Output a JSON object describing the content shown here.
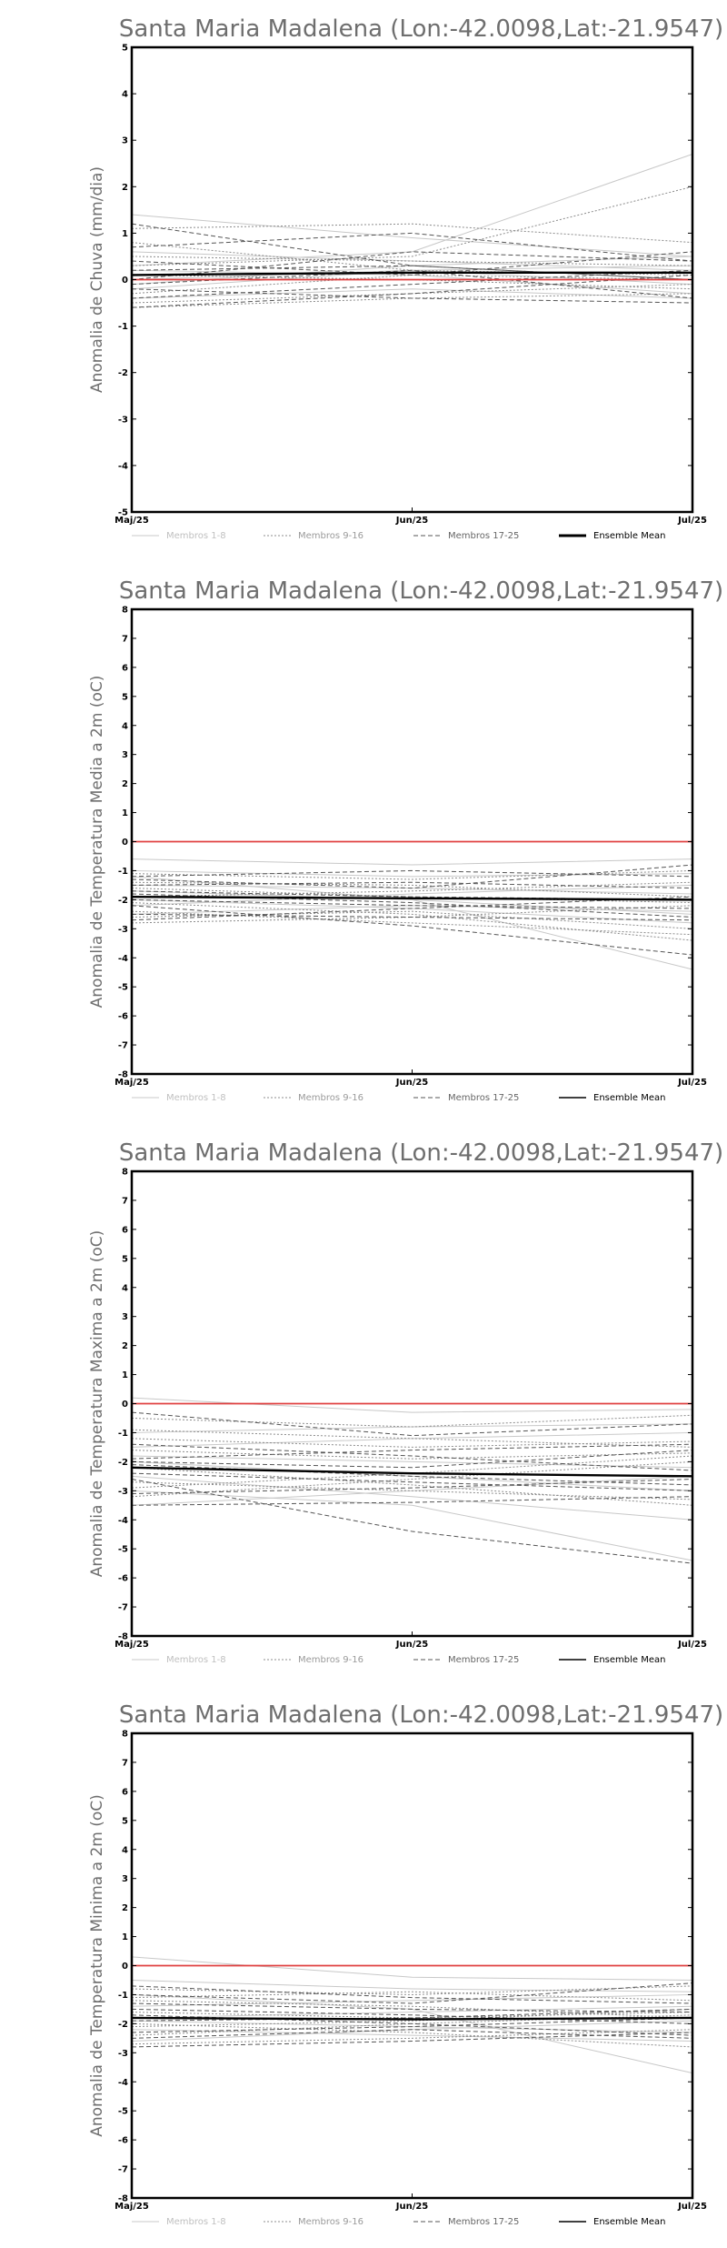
{
  "chart_data": [
    {
      "type": "line",
      "title": "Santa Maria Madalena (Lon:-42.0098,Lat:-21.9547)",
      "xlabel": "",
      "ylabel": "Anomalia de Chuva (mm/dia)",
      "categories": [
        "Maj/25",
        "Jun/25",
        "Jul/25"
      ],
      "yticks": [
        "5",
        "4",
        "3",
        "2",
        "1",
        "0",
        "-1",
        "-2",
        "-3",
        "-4",
        "-5"
      ],
      "ylim": [
        -5,
        5
      ],
      "grid": false,
      "legend_position": "bottom",
      "legend": [
        {
          "label": "Membros 1-8",
          "color": "#c8c8c8",
          "dash": "solid"
        },
        {
          "label": "Membros 9-16",
          "color": "#8c8c8c",
          "dash": "dotted"
        },
        {
          "label": "Membros 17-25",
          "color": "#555555",
          "dash": "dashed"
        },
        {
          "label": "Ensemble Mean",
          "color": "#000000",
          "dash": "solid"
        }
      ],
      "zero_line_color": "#e04040",
      "ensemble_mean": [
        0.1,
        0.15,
        0.15
      ],
      "members": [
        [
          1.4,
          0.9,
          0.5
        ],
        [
          0.3,
          0.6,
          2.7
        ],
        [
          -0.2,
          0.2,
          0.3
        ],
        [
          0.2,
          0.1,
          -0.3
        ],
        [
          -0.4,
          -0.2,
          -0.4
        ],
        [
          0.6,
          0.4,
          0.2
        ],
        [
          -0.1,
          0.3,
          0.5
        ],
        [
          0.0,
          0.2,
          -0.1
        ],
        [
          1.1,
          1.2,
          0.8
        ],
        [
          0.5,
          0.4,
          0.3
        ],
        [
          -0.5,
          -0.3,
          -0.1
        ],
        [
          0.1,
          0.0,
          -0.2
        ],
        [
          -0.3,
          0.1,
          0.0
        ],
        [
          0.8,
          0.2,
          0.1
        ],
        [
          -0.6,
          -0.4,
          -0.3
        ],
        [
          0.3,
          0.5,
          2.0
        ],
        [
          1.2,
          0.3,
          0.0
        ],
        [
          -0.4,
          -0.1,
          0.2
        ],
        [
          0.0,
          0.6,
          0.4
        ],
        [
          -0.2,
          -0.4,
          -0.5
        ],
        [
          0.4,
          0.1,
          0.6
        ],
        [
          -0.6,
          -0.3,
          0.1
        ],
        [
          0.2,
          0.3,
          0.0
        ],
        [
          -0.1,
          0.2,
          -0.4
        ],
        [
          0.7,
          1.0,
          0.4
        ]
      ]
    },
    {
      "type": "line",
      "title": "Santa Maria Madalena (Lon:-42.0098,Lat:-21.9547)",
      "xlabel": "",
      "ylabel": "Anomalia de Temperatura Media a 2m (oC)",
      "categories": [
        "Maj/25",
        "Jun/25",
        "Jul/25"
      ],
      "yticks": [
        "8",
        "7",
        "6",
        "5",
        "4",
        "3",
        "2",
        "1",
        "0",
        "-1",
        "-2",
        "-3",
        "-4",
        "-5",
        "-6",
        "-7",
        "-8"
      ],
      "ylim": [
        -8,
        8
      ],
      "grid": false,
      "legend_position": "bottom",
      "legend": [
        {
          "label": "Membros 1-8",
          "color": "#c8c8c8",
          "dash": "solid"
        },
        {
          "label": "Membros 9-16",
          "color": "#8c8c8c",
          "dash": "dotted"
        },
        {
          "label": "Membros 17-25",
          "color": "#555555",
          "dash": "dashed"
        },
        {
          "label": "Ensemble Mean",
          "color": "#000000",
          "dash": "solid"
        }
      ],
      "zero_line_color": "#e04040",
      "ensemble_mean": [
        -1.9,
        -1.95,
        -2.0
      ],
      "members": [
        [
          -0.6,
          -0.8,
          -0.6
        ],
        [
          -1.2,
          -2.0,
          -4.4
        ],
        [
          -1.5,
          -1.6,
          -1.8
        ],
        [
          -2.0,
          -2.3,
          -2.8
        ],
        [
          -2.5,
          -2.2,
          -2.4
        ],
        [
          -1.0,
          -1.2,
          -1.1
        ],
        [
          -2.2,
          -1.8,
          -1.5
        ],
        [
          -1.7,
          -2.0,
          -2.5
        ],
        [
          -1.1,
          -1.3,
          -1.0
        ],
        [
          -2.6,
          -2.4,
          -3.0
        ],
        [
          -1.4,
          -1.5,
          -1.9
        ],
        [
          -2.1,
          -2.5,
          -3.4
        ],
        [
          -2.8,
          -2.6,
          -2.2
        ],
        [
          -1.6,
          -1.9,
          -2.1
        ],
        [
          -1.9,
          -1.7,
          -1.4
        ],
        [
          -2.4,
          -2.8,
          -3.2
        ],
        [
          -1.3,
          -1.6,
          -0.8
        ],
        [
          -2.2,
          -2.9,
          -3.9
        ],
        [
          -1.8,
          -2.1,
          -2.6
        ],
        [
          -2.7,
          -2.3,
          -1.9
        ],
        [
          -1.5,
          -1.4,
          -1.6
        ],
        [
          -2.0,
          -2.2,
          -2.3
        ],
        [
          -1.2,
          -1.0,
          -1.2
        ],
        [
          -2.5,
          -2.6,
          -2.7
        ],
        [
          -1.7,
          -1.9,
          -2.0
        ]
      ]
    },
    {
      "type": "line",
      "title": "Santa Maria Madalena (Lon:-42.0098,Lat:-21.9547)",
      "xlabel": "",
      "ylabel": "Anomalia de Temperatura Maxima a 2m (oC)",
      "categories": [
        "Maj/25",
        "Jun/25",
        "Jul/25"
      ],
      "yticks": [
        "8",
        "7",
        "6",
        "5",
        "4",
        "3",
        "2",
        "1",
        "0",
        "-1",
        "-2",
        "-3",
        "-4",
        "-5",
        "-6",
        "-7",
        "-8"
      ],
      "ylim": [
        -8,
        8
      ],
      "grid": false,
      "legend_position": "bottom",
      "legend": [
        {
          "label": "Membros 1-8",
          "color": "#c8c8c8",
          "dash": "solid"
        },
        {
          "label": "Membros 9-16",
          "color": "#8c8c8c",
          "dash": "dotted"
        },
        {
          "label": "Membros 17-25",
          "color": "#555555",
          "dash": "dashed"
        },
        {
          "label": "Ensemble Mean",
          "color": "#000000",
          "dash": "solid"
        }
      ],
      "zero_line_color": "#e04040",
      "ensemble_mean": [
        -2.2,
        -2.4,
        -2.5
      ],
      "members": [
        [
          0.2,
          -0.3,
          -0.2
        ],
        [
          -1.5,
          -1.2,
          -1.0
        ],
        [
          -2.0,
          -2.5,
          -3.0
        ],
        [
          -3.5,
          -3.0,
          -2.5
        ],
        [
          -1.0,
          -0.8,
          -0.7
        ],
        [
          -2.5,
          -3.2,
          -4.0
        ],
        [
          -1.8,
          -2.0,
          -2.2
        ],
        [
          -3.0,
          -3.5,
          -5.4
        ],
        [
          -0.5,
          -0.8,
          -0.4
        ],
        [
          -2.2,
          -2.8,
          -3.5
        ],
        [
          -1.2,
          -1.5,
          -1.3
        ],
        [
          -3.2,
          -2.6,
          -2.0
        ],
        [
          -2.7,
          -3.0,
          -3.3
        ],
        [
          -1.6,
          -1.9,
          -1.7
        ],
        [
          -0.9,
          -1.2,
          -1.5
        ],
        [
          -2.9,
          -2.4,
          -1.8
        ],
        [
          -2.1,
          -2.5,
          -2.8
        ],
        [
          -3.5,
          -3.4,
          -3.2
        ],
        [
          -1.4,
          -1.8,
          -2.3
        ],
        [
          -2.6,
          -4.4,
          -5.5
        ],
        [
          -2.0,
          -2.2,
          -1.6
        ],
        [
          -3.1,
          -2.9,
          -2.6
        ],
        [
          -1.9,
          -1.6,
          -1.4
        ],
        [
          -2.4,
          -2.7,
          -3.0
        ],
        [
          -0.3,
          -1.1,
          -0.7
        ]
      ]
    },
    {
      "type": "line",
      "title": "Santa Maria Madalena (Lon:-42.0098,Lat:-21.9547)",
      "xlabel": "",
      "ylabel": "Anomalia de Temperatura Minima a 2m (oC)",
      "categories": [
        "Maj/25",
        "Jun/25",
        "Jul/25"
      ],
      "yticks": [
        "8",
        "7",
        "6",
        "5",
        "4",
        "3",
        "2",
        "1",
        "0",
        "-1",
        "-2",
        "-3",
        "-4",
        "-5",
        "-6",
        "-7",
        "-8"
      ],
      "ylim": [
        -8,
        8
      ],
      "grid": false,
      "legend_position": "bottom",
      "legend": [
        {
          "label": "Membros 1-8",
          "color": "#c8c8c8",
          "dash": "solid"
        },
        {
          "label": "Membros 9-16",
          "color": "#8c8c8c",
          "dash": "dotted"
        },
        {
          "label": "Membros 17-25",
          "color": "#555555",
          "dash": "dashed"
        },
        {
          "label": "Ensemble Mean",
          "color": "#000000",
          "dash": "solid"
        }
      ],
      "zero_line_color": "#e04040",
      "ensemble_mean": [
        -1.8,
        -1.85,
        -1.8
      ],
      "members": [
        [
          0.3,
          -0.4,
          -0.5
        ],
        [
          -1.0,
          -1.5,
          -3.7
        ],
        [
          -1.8,
          -1.6,
          -1.4
        ],
        [
          -2.2,
          -2.4,
          -2.6
        ],
        [
          -0.5,
          -0.8,
          -0.9
        ],
        [
          -2.6,
          -2.2,
          -1.9
        ],
        [
          -1.4,
          -1.2,
          -1.0
        ],
        [
          -1.9,
          -2.1,
          -2.3
        ],
        [
          -0.8,
          -1.0,
          -0.7
        ],
        [
          -2.4,
          -2.0,
          -1.7
        ],
        [
          -1.2,
          -1.4,
          -1.8
        ],
        [
          -2.0,
          -2.3,
          -2.8
        ],
        [
          -1.6,
          -1.8,
          -1.6
        ],
        [
          -2.7,
          -2.5,
          -2.2
        ],
        [
          -1.1,
          -0.9,
          -1.2
        ],
        [
          -2.1,
          -1.9,
          -1.5
        ],
        [
          -1.5,
          -1.7,
          -2.0
        ],
        [
          -2.5,
          -2.2,
          -2.5
        ],
        [
          -0.7,
          -1.1,
          -1.3
        ],
        [
          -1.7,
          -2.0,
          -2.4
        ],
        [
          -2.3,
          -2.1,
          -1.8
        ],
        [
          -1.3,
          -1.5,
          -1.6
        ],
        [
          -2.8,
          -2.6,
          -2.3
        ],
        [
          -1.9,
          -1.8,
          -1.5
        ],
        [
          -1.0,
          -1.3,
          -0.6
        ]
      ]
    }
  ]
}
